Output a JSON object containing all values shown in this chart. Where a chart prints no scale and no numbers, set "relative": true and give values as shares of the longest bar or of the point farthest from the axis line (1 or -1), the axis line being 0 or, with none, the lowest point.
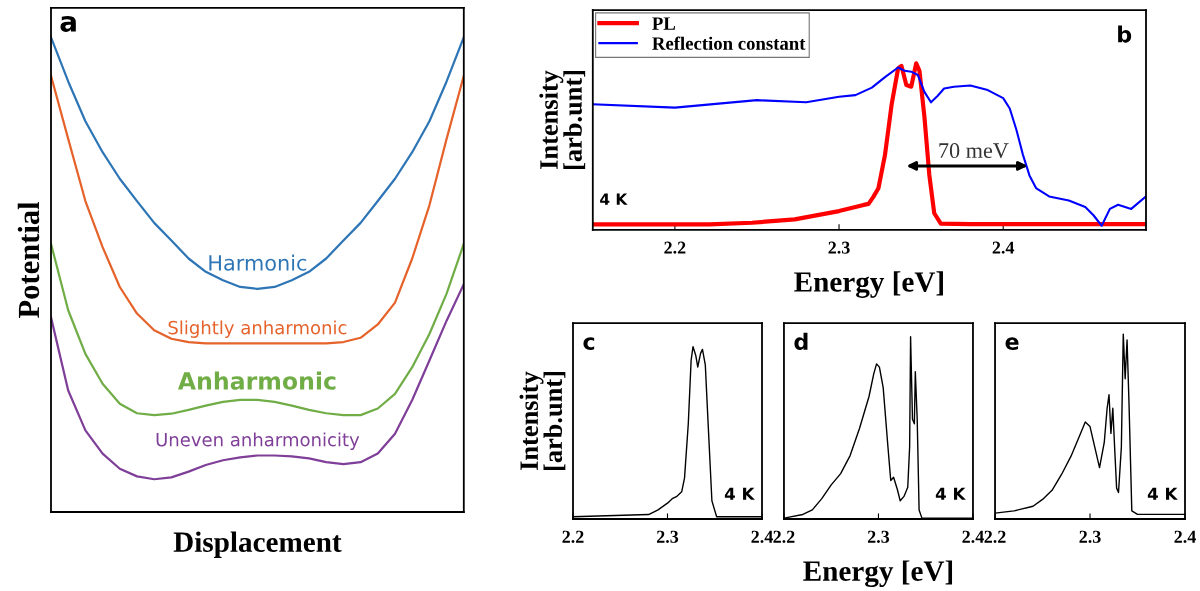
{
  "chart_data": [
    {
      "type": "line",
      "relative": true,
      "xlabel": "Displacement",
      "ylabel": "Potential",
      "tick_labels": false,
      "legend": false,
      "annotations": [
        "a"
      ],
      "categories": [
        null,
        null,
        null,
        null,
        null,
        null,
        null,
        null,
        null,
        null,
        null,
        null,
        null,
        null,
        null,
        null,
        null,
        null,
        null,
        null,
        null,
        null,
        null,
        null,
        null
      ],
      "series": [
        {
          "name": "Harmonic",
          "color": "#2e75b6",
          "values": [
            1.0,
            0.907,
            0.823,
            0.758,
            0.702,
            0.655,
            0.609,
            0.572,
            0.534,
            0.506,
            0.488,
            0.474,
            0.47,
            0.474,
            0.488,
            0.506,
            0.534,
            0.572,
            0.609,
            0.655,
            0.702,
            0.758,
            0.823,
            0.907,
            1.0
          ]
        },
        {
          "name": "Slightly anharmonic",
          "color": "#e5632b",
          "values": [
            0.919,
            0.786,
            0.655,
            0.558,
            0.474,
            0.418,
            0.383,
            0.365,
            0.358,
            0.355,
            0.355,
            0.355,
            0.355,
            0.355,
            0.355,
            0.355,
            0.355,
            0.358,
            0.367,
            0.395,
            0.441,
            0.534,
            0.646,
            0.786,
            0.919
          ]
        },
        {
          "name": "Anharmonic",
          "color": "#70ad47",
          "values": [
            0.565,
            0.425,
            0.333,
            0.27,
            0.228,
            0.208,
            0.204,
            0.207,
            0.215,
            0.224,
            0.232,
            0.236,
            0.236,
            0.232,
            0.224,
            0.215,
            0.208,
            0.204,
            0.204,
            0.218,
            0.249,
            0.305,
            0.375,
            0.46,
            0.565
          ]
        },
        {
          "name": "Uneven anharmonicity",
          "color": "#7f3f98",
          "values": [
            0.41,
            0.256,
            0.172,
            0.123,
            0.091,
            0.075,
            0.069,
            0.073,
            0.085,
            0.099,
            0.109,
            0.115,
            0.119,
            0.119,
            0.117,
            0.113,
            0.105,
            0.101,
            0.105,
            0.123,
            0.165,
            0.236,
            0.319,
            0.403,
            0.48
          ]
        }
      ]
    },
    {
      "type": "line",
      "relative": true,
      "xlabel": "Energy [eV]",
      "ylabel": "Intensity\n[arb.unt]",
      "tick_labels": "x",
      "legend": "top left",
      "xlim": [
        2.15,
        2.487
      ],
      "xticks": [
        2.2,
        2.3,
        2.4
      ],
      "annotations": [
        "b",
        "4 K",
        "70 meV"
      ],
      "series": [
        {
          "name": "PL",
          "color": "#ff0000",
          "x": [
            2.15,
            2.2,
            2.221,
            2.247,
            2.273,
            2.3,
            2.315,
            2.318,
            2.321,
            2.324,
            2.328,
            2.332,
            2.336,
            2.338,
            2.341,
            2.344,
            2.347,
            2.349,
            2.352,
            2.355,
            2.358,
            2.362,
            2.38,
            2.487
          ],
          "values": [
            0.033,
            0.033,
            0.033,
            0.043,
            0.063,
            0.113,
            0.15,
            0.156,
            0.2,
            0.25,
            0.45,
            0.75,
            0.97,
            0.985,
            0.87,
            0.86,
            1.0,
            0.955,
            0.68,
            0.33,
            0.1,
            0.038,
            0.035,
            0.035
          ]
        },
        {
          "name": "Reflection constant",
          "color": "#0000ff",
          "x": [
            2.15,
            2.2,
            2.25,
            2.28,
            2.3,
            2.31,
            2.32,
            2.328,
            2.336,
            2.34,
            2.344,
            2.348,
            2.352,
            2.356,
            2.36,
            2.364,
            2.37,
            2.38,
            2.39,
            2.4,
            2.404,
            2.408,
            2.412,
            2.416,
            2.42,
            2.428,
            2.44,
            2.45,
            2.455,
            2.46,
            2.465,
            2.47,
            2.478,
            2.487
          ],
          "values": [
            0.754,
            0.734,
            0.779,
            0.766,
            0.799,
            0.809,
            0.854,
            0.917,
            0.975,
            0.955,
            0.95,
            0.93,
            0.829,
            0.766,
            0.804,
            0.849,
            0.859,
            0.867,
            0.842,
            0.791,
            0.729,
            0.603,
            0.452,
            0.327,
            0.251,
            0.201,
            0.176,
            0.138,
            0.088,
            0.025,
            0.126,
            0.151,
            0.126,
            0.201
          ]
        }
      ]
    },
    {
      "type": "line",
      "relative": true,
      "ylabel": "Intensity\n[arb.unt]",
      "tick_labels": "x",
      "xlim": [
        2.2,
        2.4
      ],
      "xticks": [
        2.2,
        2.3,
        2.4
      ],
      "annotations": [
        "c",
        "4 K"
      ],
      "series": [
        {
          "color": "#000000",
          "x": [
            2.2,
            2.28,
            2.29,
            2.3,
            2.305,
            2.31,
            2.315,
            2.318,
            2.322,
            2.325,
            2.327,
            2.33,
            2.332,
            2.335,
            2.337,
            2.34,
            2.343,
            2.347,
            2.352,
            2.4
          ],
          "values": [
            0.013,
            0.026,
            0.053,
            0.092,
            0.118,
            0.132,
            0.158,
            0.237,
            0.553,
            0.921,
            1.0,
            0.947,
            0.882,
            0.961,
            0.984,
            0.895,
            0.553,
            0.105,
            0.013,
            0.013
          ]
        }
      ]
    },
    {
      "type": "line",
      "relative": true,
      "xlabel": "Energy [eV]",
      "tick_labels": "x",
      "xlim": [
        2.2,
        2.4
      ],
      "xticks": [
        2.2,
        2.3,
        2.4
      ],
      "annotations": [
        "d",
        "4 K"
      ],
      "series": [
        {
          "color": "#000000",
          "x": [
            2.2,
            2.22,
            2.23,
            2.24,
            2.25,
            2.26,
            2.27,
            2.28,
            2.29,
            2.295,
            2.298,
            2.301,
            2.305,
            2.31,
            2.313,
            2.316,
            2.32,
            2.323,
            2.327,
            2.331,
            2.333,
            2.334,
            2.336,
            2.338,
            2.339,
            2.341,
            2.343,
            2.346,
            2.4
          ],
          "values": [
            0.005,
            0.025,
            0.05,
            0.112,
            0.187,
            0.249,
            0.348,
            0.498,
            0.672,
            0.796,
            0.851,
            0.833,
            0.721,
            0.398,
            0.211,
            0.229,
            0.162,
            0.1,
            0.124,
            0.174,
            0.398,
            1.0,
            0.547,
            0.522,
            0.808,
            0.547,
            0.05,
            0.005,
            0.005
          ]
        }
      ]
    },
    {
      "type": "line",
      "relative": true,
      "tick_labels": "x",
      "xlim": [
        2.2,
        2.4
      ],
      "xticks": [
        2.2,
        2.3,
        2.4
      ],
      "annotations": [
        "e",
        "4 K"
      ],
      "series": [
        {
          "color": "#000000",
          "x": [
            2.2,
            2.22,
            2.24,
            2.25,
            2.26,
            2.27,
            2.28,
            2.29,
            2.295,
            2.3,
            2.305,
            2.31,
            2.315,
            2.318,
            2.32,
            2.322,
            2.324,
            2.326,
            2.328,
            2.33,
            2.333,
            2.335,
            2.337,
            2.339,
            2.341,
            2.344,
            2.35,
            2.4
          ],
          "values": [
            0.032,
            0.044,
            0.069,
            0.106,
            0.155,
            0.241,
            0.34,
            0.463,
            0.525,
            0.5,
            0.389,
            0.278,
            0.414,
            0.599,
            0.672,
            0.463,
            0.599,
            0.377,
            0.167,
            0.143,
            0.389,
            1.0,
            0.759,
            0.968,
            0.635,
            0.044,
            0.025,
            0.025
          ]
        }
      ]
    }
  ]
}
